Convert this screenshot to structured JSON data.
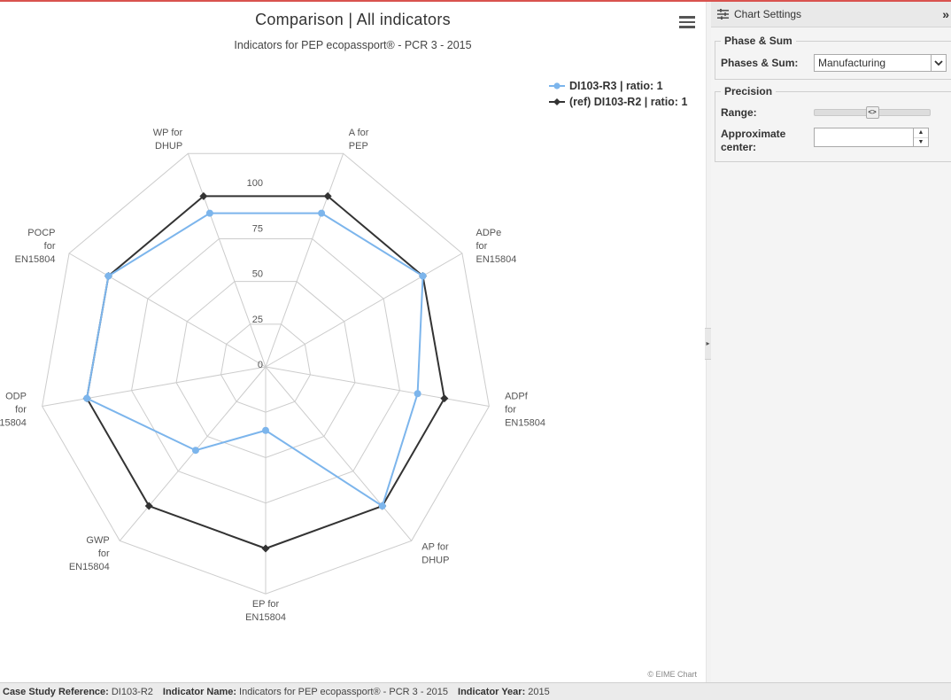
{
  "chart": {
    "title": "Comparison | All indicators",
    "subtitle": "Indicators for PEP ecopassport® - PCR 3 - 2015",
    "credits": "© EIME Chart",
    "menu_icon": "hamburger-menu-icon"
  },
  "chart_data": {
    "type": "radar",
    "title": "Comparison | All indicators",
    "subtitle": "Indicators for PEP ecopassport® - PCR 3 - 2015",
    "categories": [
      "A for PEP",
      "ADPe for EN15804",
      "ADPf for EN15804",
      "AP for DHUP",
      "EP for EN15804",
      "GWP for EN15804",
      "ODP for EN15804",
      "POCP for EN15804",
      "WP for DHUP"
    ],
    "category_lines": [
      [
        "A for",
        "PEP"
      ],
      [
        "ADPe",
        "for",
        "EN15804"
      ],
      [
        "ADPf",
        "for",
        "EN15804"
      ],
      [
        "AP for",
        "DHUP"
      ],
      [
        "EP for",
        "EN15804"
      ],
      [
        "GWP",
        "for",
        "EN15804"
      ],
      [
        "ODP",
        "for",
        "EN15804"
      ],
      [
        "POCP",
        "for",
        "EN15804"
      ],
      [
        "WP for",
        "DHUP"
      ]
    ],
    "radial_ticks": [
      "0",
      "25",
      "50",
      "75",
      "100"
    ],
    "ylim": [
      0,
      100
    ],
    "grid": true,
    "legend_position": "top-right",
    "series": [
      {
        "name": "DI103-R3 | ratio: 1",
        "color": "#7cb5ec",
        "marker": "circle",
        "values": [
          90,
          100,
          85,
          100,
          35,
          60,
          100,
          100,
          90
        ]
      },
      {
        "name": "(ref) DI103-R2 | ratio: 1",
        "color": "#333333",
        "marker": "diamond",
        "values": [
          100,
          100,
          100,
          100,
          100,
          100,
          100,
          100,
          100
        ]
      }
    ]
  },
  "panel": {
    "title": "Chart Settings",
    "header_icon": "settings-list-icon",
    "expand_icon": "double-chevron-right-icon",
    "phase_section": {
      "legend": "Phase & Sum",
      "label": "Phases & Sum:",
      "selected": "Manufacturing"
    },
    "precision_section": {
      "legend": "Precision",
      "range_label": "Range:",
      "slider_level": 0.5,
      "center_label_1": "Approximate",
      "center_label_2": "center:",
      "center_value": ""
    }
  },
  "statusbar": {
    "case_label": "Case Study Reference:",
    "case_value": "DI103-R2",
    "indicator_label": "Indicator Name:",
    "indicator_value": "Indicators for PEP ecopassport® - PCR 3 - 2015",
    "year_label": "Indicator Year:",
    "year_value": "2015"
  }
}
